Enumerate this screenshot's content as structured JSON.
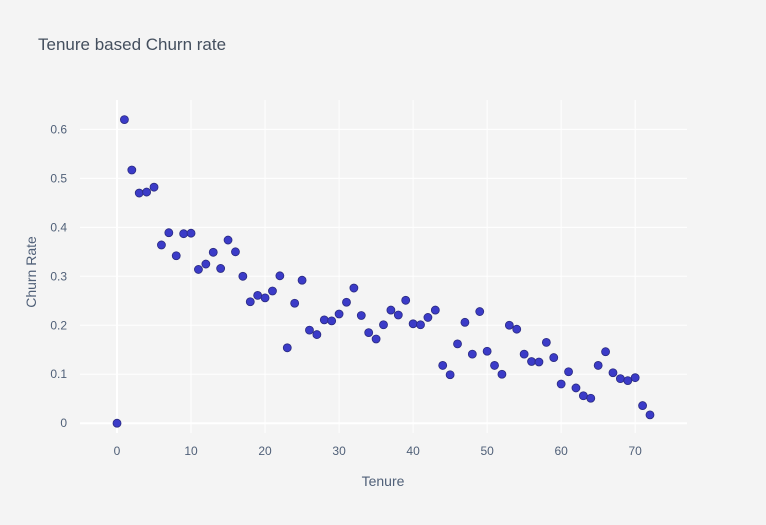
{
  "chart_data": {
    "type": "scatter",
    "title": "Tenure based Churn rate",
    "xlabel": "Tenure",
    "ylabel": "Churn Rate",
    "xlim": [
      -5,
      77
    ],
    "ylim": [
      -0.02,
      0.66
    ],
    "xticks": [
      0,
      10,
      20,
      30,
      40,
      50,
      60,
      70
    ],
    "yticks": [
      0,
      0.1,
      0.2,
      0.3,
      0.4,
      0.5,
      0.6
    ],
    "grid": true,
    "marker_color": "#3b3bc8",
    "points": [
      [
        0,
        0.0
      ],
      [
        1,
        0.62
      ],
      [
        2,
        0.517
      ],
      [
        3,
        0.47
      ],
      [
        4,
        0.472
      ],
      [
        5,
        0.482
      ],
      [
        6,
        0.364
      ],
      [
        7,
        0.389
      ],
      [
        8,
        0.342
      ],
      [
        9,
        0.387
      ],
      [
        10,
        0.388
      ],
      [
        11,
        0.314
      ],
      [
        12,
        0.325
      ],
      [
        13,
        0.349
      ],
      [
        14,
        0.316
      ],
      [
        15,
        0.374
      ],
      [
        16,
        0.35
      ],
      [
        17,
        0.3
      ],
      [
        18,
        0.248
      ],
      [
        19,
        0.261
      ],
      [
        20,
        0.256
      ],
      [
        21,
        0.27
      ],
      [
        22,
        0.301
      ],
      [
        23,
        0.154
      ],
      [
        24,
        0.245
      ],
      [
        25,
        0.292
      ],
      [
        26,
        0.19
      ],
      [
        27,
        0.181
      ],
      [
        28,
        0.211
      ],
      [
        29,
        0.209
      ],
      [
        30,
        0.223
      ],
      [
        31,
        0.247
      ],
      [
        32,
        0.276
      ],
      [
        33,
        0.22
      ],
      [
        34,
        0.185
      ],
      [
        35,
        0.172
      ],
      [
        36,
        0.201
      ],
      [
        37,
        0.231
      ],
      [
        38,
        0.221
      ],
      [
        39,
        0.251
      ],
      [
        40,
        0.203
      ],
      [
        41,
        0.201
      ],
      [
        42,
        0.216
      ],
      [
        43,
        0.231
      ],
      [
        44,
        0.118
      ],
      [
        45,
        0.099
      ],
      [
        46,
        0.162
      ],
      [
        47,
        0.206
      ],
      [
        48,
        0.141
      ],
      [
        49,
        0.228
      ],
      [
        50,
        0.147
      ],
      [
        51,
        0.118
      ],
      [
        52,
        0.1
      ],
      [
        53,
        0.2
      ],
      [
        54,
        0.192
      ],
      [
        55,
        0.141
      ],
      [
        56,
        0.126
      ],
      [
        57,
        0.125
      ],
      [
        58,
        0.165
      ],
      [
        59,
        0.134
      ],
      [
        60,
        0.08
      ],
      [
        61,
        0.105
      ],
      [
        62,
        0.072
      ],
      [
        63,
        0.056
      ],
      [
        64,
        0.051
      ],
      [
        65,
        0.118
      ],
      [
        66,
        0.146
      ],
      [
        67,
        0.103
      ],
      [
        68,
        0.091
      ],
      [
        69,
        0.087
      ],
      [
        70,
        0.093
      ],
      [
        71,
        0.036
      ],
      [
        72,
        0.017
      ]
    ]
  }
}
